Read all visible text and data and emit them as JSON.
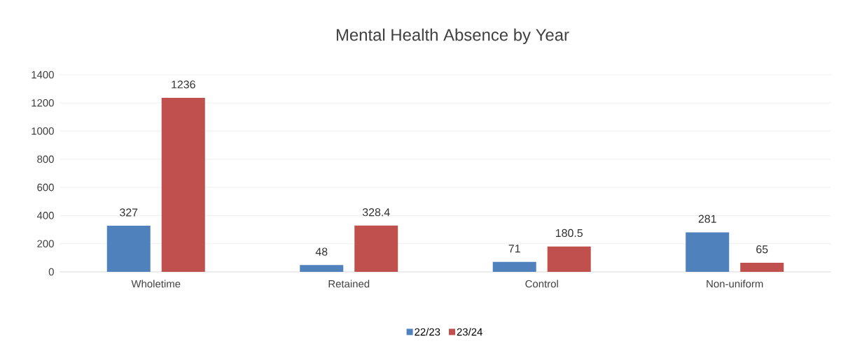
{
  "chart_data": {
    "type": "bar",
    "title": "Mental Health Absence by Year",
    "categories": [
      "Wholetime",
      "Retained",
      "Control",
      "Non-uniform"
    ],
    "series": [
      {
        "name": "22/23",
        "color": "#4f81bd",
        "values": [
          327,
          48,
          71,
          281
        ]
      },
      {
        "name": "23/24",
        "color": "#c0504d",
        "values": [
          1236,
          328.4,
          180.5,
          65
        ]
      }
    ],
    "ylim": [
      0,
      1400
    ],
    "yticks": [
      0,
      200,
      400,
      600,
      800,
      1000,
      1200,
      1400
    ],
    "grid": "y",
    "legend": "bottom",
    "data_labels": true
  }
}
